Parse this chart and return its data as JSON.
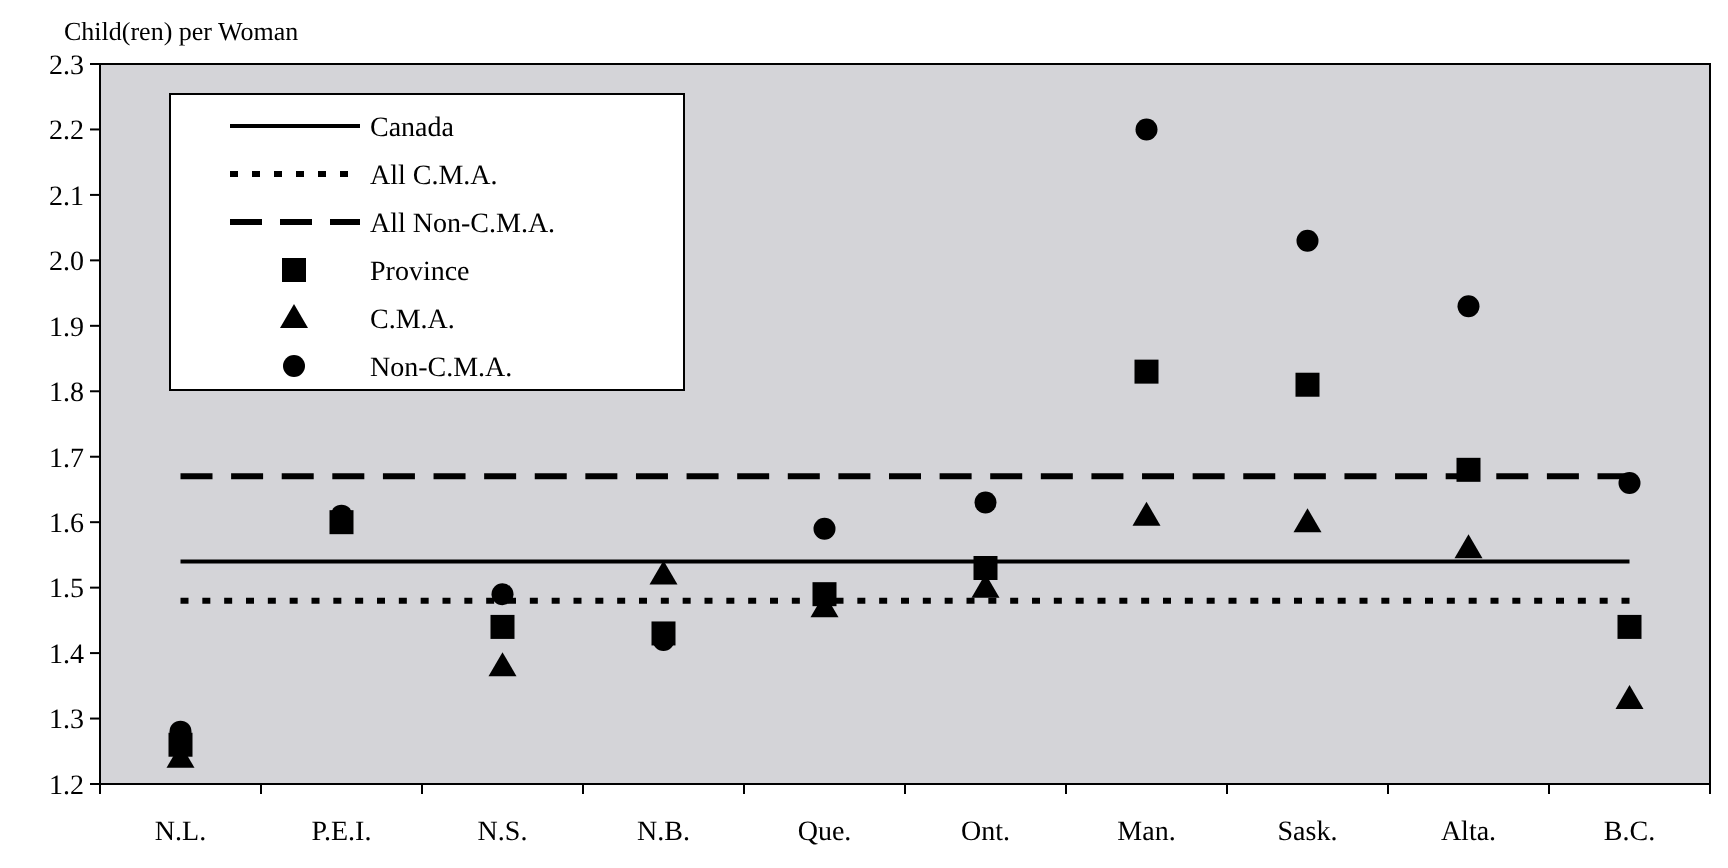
{
  "chart_data": {
    "type": "scatter",
    "ylabel": "Child(ren) per Woman",
    "categories": [
      "N.L.",
      "P.E.I.",
      "N.S.",
      "N.B.",
      "Que.",
      "Ont.",
      "Man.",
      "Sask.",
      "Alta.",
      "B.C."
    ],
    "ylim": [
      1.2,
      2.3
    ],
    "yticks": [
      1.2,
      1.3,
      1.4,
      1.5,
      1.6,
      1.7,
      1.8,
      1.9,
      {
        "value": 2,
        "label": "2.0"
      },
      2.1,
      2.2,
      2.3
    ],
    "grid": false,
    "legend": "top left",
    "series": [
      {
        "name": "Canada",
        "type": "line",
        "line_style": "solid",
        "color": "#000000",
        "values": [
          1.54,
          1.54,
          1.54,
          1.54,
          1.54,
          1.54,
          1.54,
          1.54,
          1.54,
          1.54
        ]
      },
      {
        "name": "All C.M.A.",
        "type": "line",
        "line_style": "dotted",
        "color": "#000000",
        "values": [
          1.48,
          1.48,
          1.48,
          1.48,
          1.48,
          1.48,
          1.48,
          1.48,
          1.48,
          1.48
        ]
      },
      {
        "name": "All Non-C.M.A.",
        "type": "line",
        "line_style": "dashed",
        "color": "#000000",
        "values": [
          1.67,
          1.67,
          1.67,
          1.67,
          1.67,
          1.67,
          1.67,
          1.67,
          1.67,
          1.67
        ]
      },
      {
        "name": "Province",
        "type": "scatter",
        "marker": "square",
        "color": "#000000",
        "values": [
          1.26,
          1.6,
          1.44,
          1.43,
          1.49,
          1.53,
          1.83,
          1.81,
          1.68,
          1.44
        ]
      },
      {
        "name": "C.M.A.",
        "type": "scatter",
        "marker": "triangle",
        "color": "#000000",
        "values": [
          1.24,
          null,
          1.38,
          1.52,
          1.47,
          1.5,
          1.61,
          1.6,
          1.56,
          1.33
        ]
      },
      {
        "name": "Non-C.M.A.",
        "type": "scatter",
        "marker": "circle",
        "color": "#000000",
        "values": [
          1.28,
          1.61,
          1.49,
          1.42,
          1.59,
          1.63,
          2.2,
          2.03,
          1.93,
          1.66
        ]
      }
    ]
  }
}
